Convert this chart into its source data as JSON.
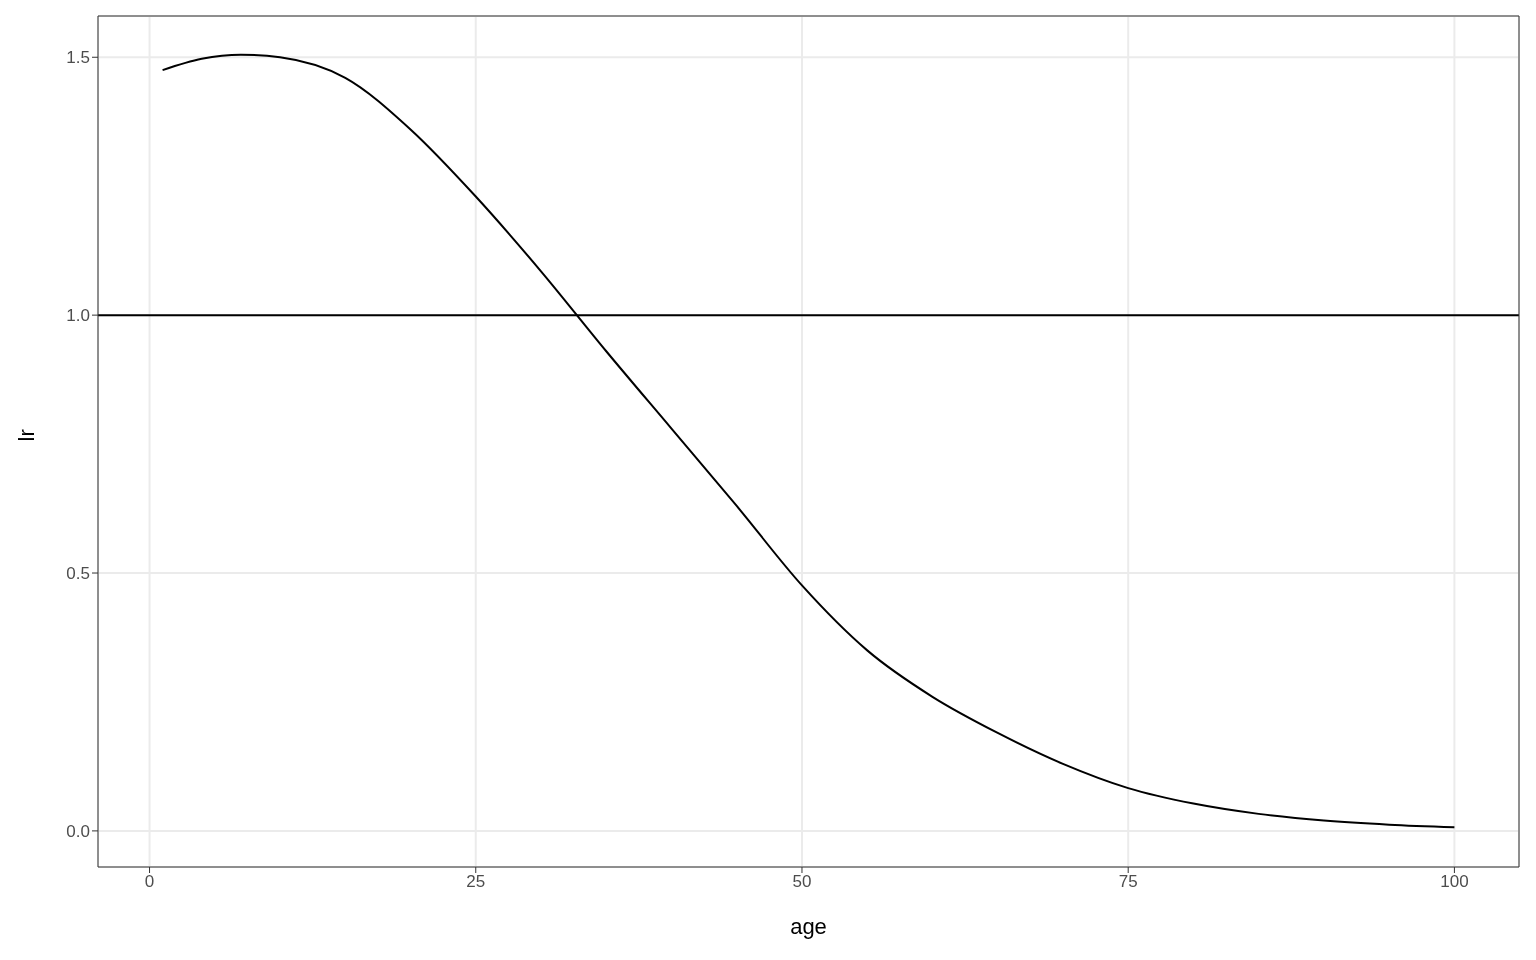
{
  "chart_data": {
    "type": "line",
    "xlabel": "age",
    "ylabel": "lr",
    "x": [
      1,
      4,
      7,
      10,
      15,
      20,
      25,
      30,
      35,
      40,
      45,
      50,
      55,
      60,
      65,
      70,
      75,
      80,
      85,
      90,
      95,
      100
    ],
    "series": [
      {
        "color": "#000000",
        "values": [
          1.475,
          1.497,
          1.505,
          1.5,
          1.46,
          1.36,
          1.23,
          1.085,
          0.93,
          0.78,
          0.63,
          0.476,
          0.35,
          0.26,
          0.19,
          0.13,
          0.083,
          0.053,
          0.033,
          0.02,
          0.012,
          0.007
        ]
      }
    ],
    "xlim": [
      -3.95,
      104.95
    ],
    "xticks": [
      0,
      25,
      50,
      75,
      100
    ],
    "ylim": [
      -0.07,
      1.58
    ],
    "yticks": [
      {
        "value": 0,
        "label": "0.0"
      },
      {
        "value": 0.5,
        "label": "0.5"
      },
      {
        "value": 1,
        "label": "1.0"
      },
      {
        "value": 1.5,
        "label": "1.5"
      }
    ],
    "ref_lines": [
      {
        "axis": "y",
        "value": 1,
        "color": "#000000"
      }
    ],
    "grid": true,
    "legend": false,
    "marker": "none",
    "line_style": "solid"
  }
}
